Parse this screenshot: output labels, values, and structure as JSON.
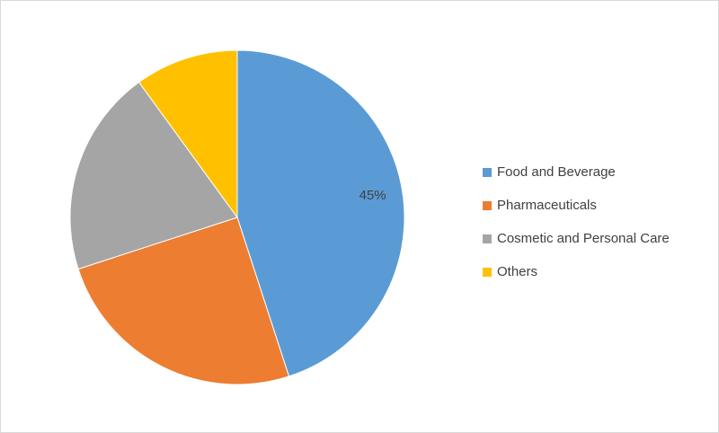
{
  "chart_data": {
    "type": "pie",
    "title": "",
    "slices": [
      {
        "label": "Food and Beverage",
        "value": 45,
        "color": "#5b9bd5",
        "data_label": "45%"
      },
      {
        "label": "Pharmaceuticals",
        "value": 25,
        "color": "#ed7d31",
        "data_label": ""
      },
      {
        "label": "Cosmetic and Personal Care",
        "value": 20,
        "color": "#a5a5a5",
        "data_label": ""
      },
      {
        "label": "Others",
        "value": 10,
        "color": "#ffc000",
        "data_label": ""
      }
    ],
    "legend_position": "right",
    "start_angle": "12 o'clock, clockwise"
  }
}
